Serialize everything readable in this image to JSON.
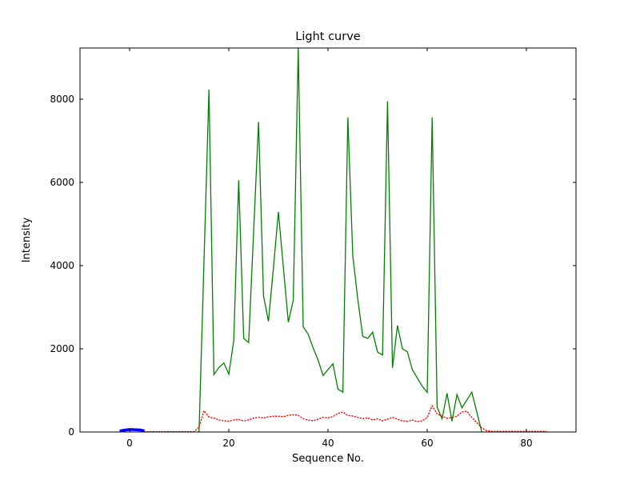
{
  "figure": {
    "background": "#ffffff",
    "axes_edge_color": "#000000",
    "text_color": "#000000"
  },
  "chart_data": {
    "type": "line",
    "title": "Light curve",
    "xlabel": "Sequence No.",
    "ylabel": "Intensity",
    "xlim": [
      -10,
      90
    ],
    "ylim": [
      0,
      9230
    ],
    "xticks": [
      0,
      20,
      40,
      60,
      80
    ],
    "yticks": [
      0,
      2000,
      4000,
      6000,
      8000
    ],
    "grid": false,
    "legend_position": "none",
    "series": [
      {
        "name": "blue-baseline-segment",
        "color": "#0000ff",
        "style": "solid",
        "linewidth": 3.5,
        "x": [
          -2,
          -1,
          0,
          1,
          2,
          3
        ],
        "y": [
          25,
          45,
          60,
          55,
          50,
          30
        ]
      },
      {
        "name": "green-light-curve",
        "color": "#008000",
        "style": "solid",
        "linewidth": 1.3,
        "x": [
          14,
          15,
          16,
          17,
          18,
          19,
          20,
          21,
          22,
          23,
          24,
          25,
          26,
          27,
          28,
          29,
          30,
          31,
          32,
          33,
          34,
          35,
          36,
          37,
          38,
          39,
          40,
          41,
          42,
          43,
          44,
          45,
          46,
          47,
          48,
          49,
          50,
          51,
          52,
          53,
          54,
          55,
          56,
          57,
          58,
          59,
          60,
          61,
          62,
          63,
          64,
          65,
          66,
          67,
          68,
          69,
          70,
          71
        ],
        "y": [
          0,
          4100,
          8230,
          1380,
          1550,
          1660,
          1390,
          2200,
          6050,
          2250,
          2150,
          4800,
          7450,
          3270,
          2660,
          3950,
          5290,
          3960,
          2640,
          3170,
          9230,
          2530,
          2350,
          2020,
          1730,
          1360,
          1500,
          1640,
          1030,
          960,
          7560,
          4230,
          3200,
          2300,
          2250,
          2400,
          1920,
          1850,
          7950,
          1540,
          2560,
          2000,
          1930,
          1500,
          1300,
          1100,
          950,
          7560,
          600,
          320,
          930,
          260,
          900,
          580,
          770,
          960,
          480,
          0
        ]
      },
      {
        "name": "red-background-dotted",
        "color": "#ff0000",
        "style": "dotted",
        "linewidth": 1.4,
        "x": [
          3,
          4,
          5,
          6,
          7,
          8,
          9,
          10,
          11,
          12,
          13,
          14,
          15,
          16,
          17,
          18,
          19,
          20,
          21,
          22,
          23,
          24,
          25,
          26,
          27,
          28,
          29,
          30,
          31,
          32,
          33,
          34,
          35,
          36,
          37,
          38,
          39,
          40,
          41,
          42,
          43,
          44,
          45,
          46,
          47,
          48,
          49,
          50,
          51,
          52,
          53,
          54,
          55,
          56,
          57,
          58,
          59,
          60,
          61,
          62,
          63,
          64,
          65,
          66,
          67,
          68,
          69,
          70,
          71,
          72,
          73,
          74,
          75,
          76,
          77,
          78,
          79,
          80,
          81,
          82,
          83,
          84
        ],
        "y": [
          8,
          8,
          8,
          8,
          8,
          8,
          8,
          8,
          8,
          8,
          8,
          120,
          510,
          360,
          335,
          290,
          270,
          258,
          290,
          300,
          265,
          290,
          335,
          355,
          340,
          365,
          380,
          380,
          368,
          400,
          417,
          400,
          321,
          288,
          269,
          308,
          352,
          340,
          371,
          448,
          480,
          398,
          384,
          352,
          320,
          340,
          288,
          320,
          269,
          308,
          352,
          308,
          269,
          256,
          288,
          250,
          269,
          350,
          630,
          440,
          380,
          330,
          350,
          380,
          480,
          500,
          350,
          225,
          100,
          30,
          15,
          15,
          15,
          15,
          15,
          15,
          15,
          15,
          15,
          15,
          15,
          15
        ]
      }
    ]
  }
}
